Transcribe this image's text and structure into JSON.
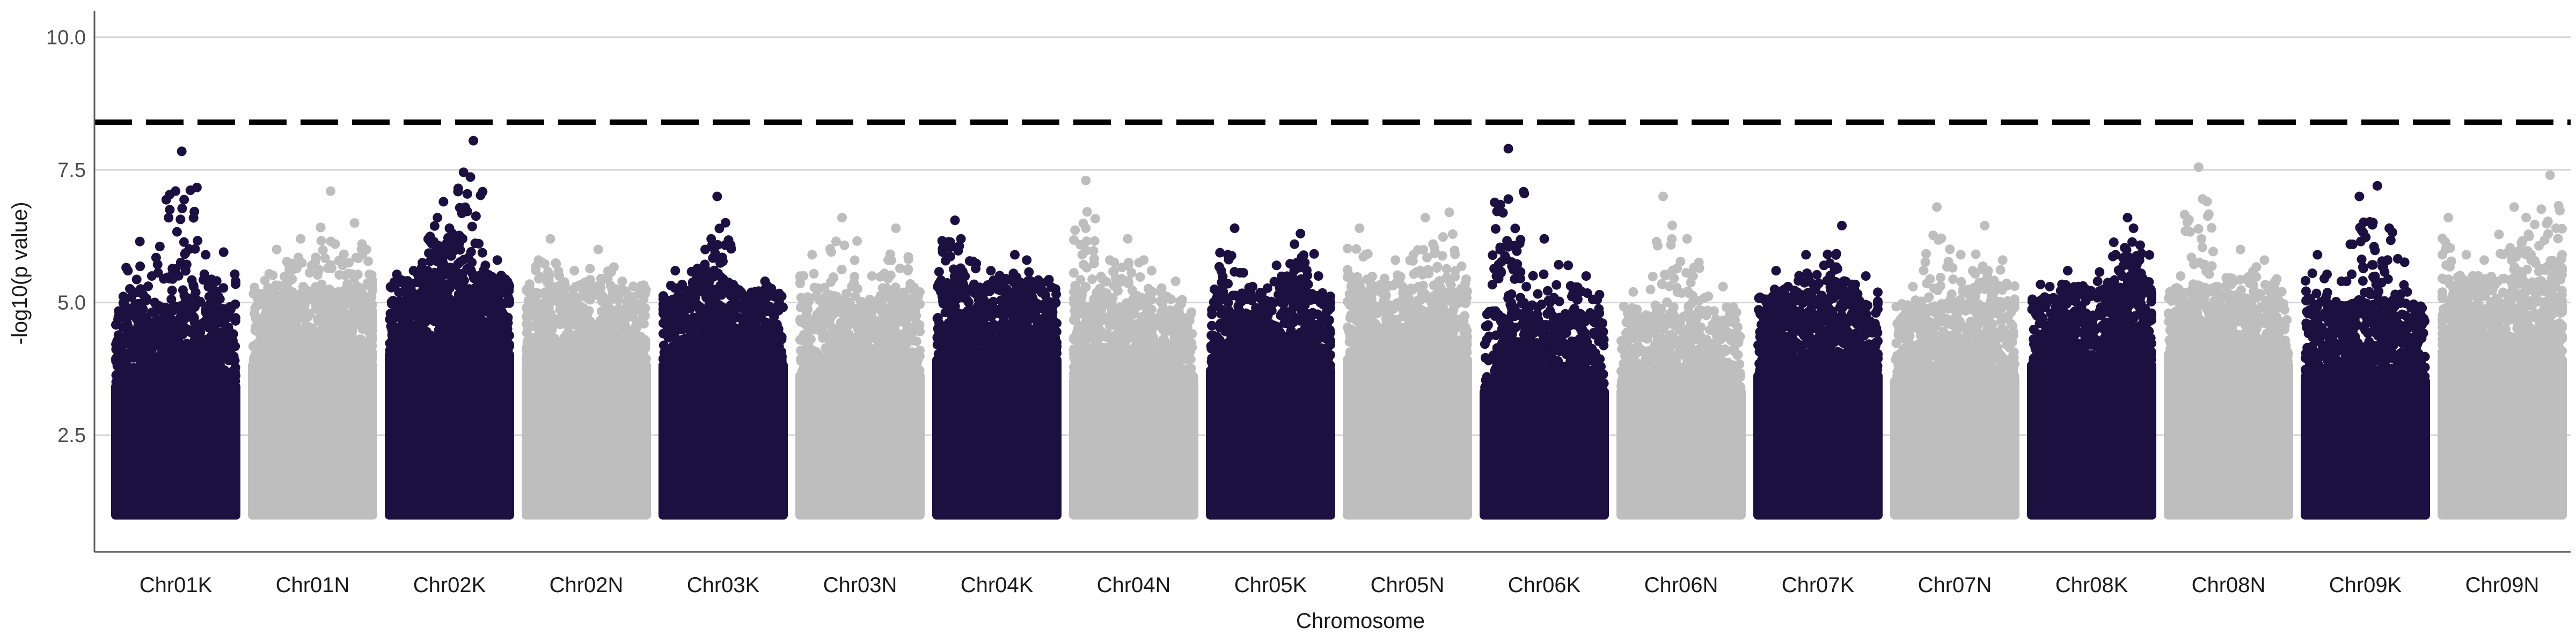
{
  "chart_data": {
    "type": "scatter",
    "title": "",
    "xlabel": "Chromosome",
    "ylabel": "-log10(p value)",
    "ylim": [
      0.3,
      10.5
    ],
    "yticks": [
      2.5,
      5.0,
      7.5,
      10.0
    ],
    "ytick_labels": [
      "2.5",
      "5.0",
      "7.5",
      "10.0"
    ],
    "grid": "horizontal major lines",
    "legend": "none",
    "threshold": {
      "y": 8.4,
      "style": "dashed",
      "color": "#000000"
    },
    "colors": {
      "odd_chromosome": "#1c1040",
      "even_chromosome": "#bebebe",
      "grid": "#d4d4d4",
      "axis": "#5a5a5a"
    },
    "categories": [
      "Chr01K",
      "Chr01N",
      "Chr02K",
      "Chr02N",
      "Chr03K",
      "Chr03N",
      "Chr04K",
      "Chr04N",
      "Chr05K",
      "Chr05N",
      "Chr06K",
      "Chr06N",
      "Chr07K",
      "Chr07N",
      "Chr08K",
      "Chr08N",
      "Chr09K",
      "Chr09N"
    ],
    "series": [
      {
        "color": "#1c1040",
        "base_top": 3.5,
        "peaks": [
          [
            0.2,
            6.15
          ],
          [
            0.55,
            7.85
          ],
          [
            0.45,
            6.75
          ],
          [
            0.75,
            5.9
          ],
          [
            0.1,
            5.6
          ],
          [
            0.9,
            5.95
          ],
          [
            0.3,
            5.5
          ],
          [
            0.65,
            5.3
          ]
        ]
      },
      {
        "color": "#bebebe",
        "base_top": 3.9,
        "peaks": [
          [
            0.2,
            6.0
          ],
          [
            0.4,
            6.2
          ],
          [
            0.65,
            7.1
          ],
          [
            0.85,
            6.5
          ],
          [
            0.95,
            6.0
          ],
          [
            0.55,
            5.6
          ],
          [
            0.75,
            5.7
          ]
        ]
      },
      {
        "color": "#1c1040",
        "base_top": 4.1,
        "peaks": [
          [
            0.7,
            8.05
          ],
          [
            0.45,
            6.9
          ],
          [
            0.4,
            6.6
          ],
          [
            0.5,
            6.4
          ],
          [
            0.6,
            6.2
          ],
          [
            0.35,
            5.8
          ],
          [
            0.9,
            5.8
          ],
          [
            0.2,
            5.6
          ],
          [
            0.8,
            5.7
          ]
        ]
      },
      {
        "color": "#bebebe",
        "base_top": 3.9,
        "peaks": [
          [
            0.2,
            6.2
          ],
          [
            0.6,
            6.0
          ],
          [
            0.4,
            5.6
          ],
          [
            0.8,
            5.4
          ],
          [
            0.1,
            5.8
          ]
        ]
      },
      {
        "color": "#1c1040",
        "base_top": 3.9,
        "peaks": [
          [
            0.45,
            7.0
          ],
          [
            0.4,
            6.2
          ],
          [
            0.35,
            6.0
          ],
          [
            0.1,
            5.6
          ],
          [
            0.85,
            5.4
          ],
          [
            0.65,
            5.2
          ]
        ]
      },
      {
        "color": "#bebebe",
        "base_top": 3.7,
        "peaks": [
          [
            0.35,
            6.6
          ],
          [
            0.8,
            6.4
          ],
          [
            0.1,
            5.9
          ],
          [
            0.6,
            5.5
          ],
          [
            0.9,
            5.6
          ]
        ]
      },
      {
        "color": "#1c1040",
        "base_top": 4.0,
        "peaks": [
          [
            0.15,
            6.55
          ],
          [
            0.65,
            5.9
          ],
          [
            0.75,
            5.8
          ],
          [
            0.2,
            6.2
          ],
          [
            0.45,
            5.6
          ],
          [
            0.9,
            5.2
          ]
        ]
      },
      {
        "color": "#bebebe",
        "base_top": 3.6,
        "peaks": [
          [
            0.1,
            7.3
          ],
          [
            0.1,
            6.4
          ],
          [
            0.45,
            6.2
          ],
          [
            0.3,
            5.8
          ],
          [
            0.65,
            5.6
          ],
          [
            0.85,
            5.4
          ]
        ]
      },
      {
        "color": "#1c1040",
        "base_top": 3.8,
        "peaks": [
          [
            0.2,
            6.4
          ],
          [
            0.75,
            6.3
          ],
          [
            0.7,
            6.1
          ],
          [
            0.55,
            5.7
          ],
          [
            0.35,
            5.3
          ],
          [
            0.9,
            5.5
          ]
        ]
      },
      {
        "color": "#bebebe",
        "base_top": 4.0,
        "peaks": [
          [
            0.1,
            6.4
          ],
          [
            0.65,
            6.6
          ],
          [
            0.85,
            6.7
          ],
          [
            0.4,
            5.8
          ],
          [
            0.55,
            5.9
          ],
          [
            0.9,
            5.6
          ]
        ]
      },
      {
        "color": "#1c1040",
        "base_top": 3.4,
        "peaks": [
          [
            0.2,
            7.9
          ],
          [
            0.2,
            6.95
          ],
          [
            0.5,
            6.2
          ],
          [
            0.7,
            5.7
          ],
          [
            0.85,
            5.5
          ],
          [
            0.35,
            5.3
          ]
        ]
      },
      {
        "color": "#bebebe",
        "base_top": 3.4,
        "peaks": [
          [
            0.35,
            7.0
          ],
          [
            0.55,
            6.2
          ],
          [
            0.6,
            5.5
          ],
          [
            0.1,
            5.2
          ],
          [
            0.85,
            5.3
          ]
        ]
      },
      {
        "color": "#1c1040",
        "base_top": 3.7,
        "peaks": [
          [
            0.7,
            6.45
          ],
          [
            0.4,
            5.9
          ],
          [
            0.15,
            5.6
          ],
          [
            0.55,
            5.7
          ],
          [
            0.9,
            5.5
          ],
          [
            0.25,
            5.3
          ]
        ]
      },
      {
        "color": "#bebebe",
        "base_top": 3.6,
        "peaks": [
          [
            0.35,
            6.8
          ],
          [
            0.75,
            6.45
          ],
          [
            0.55,
            5.9
          ],
          [
            0.15,
            5.3
          ],
          [
            0.9,
            5.8
          ]
        ]
      },
      {
        "color": "#1c1040",
        "base_top": 3.9,
        "peaks": [
          [
            0.8,
            6.6
          ],
          [
            0.85,
            6.4
          ],
          [
            0.7,
            5.9
          ],
          [
            0.9,
            5.8
          ],
          [
            0.3,
            5.6
          ],
          [
            0.15,
            5.3
          ],
          [
            0.55,
            5.4
          ]
        ]
      },
      {
        "color": "#bebebe",
        "base_top": 3.9,
        "peaks": [
          [
            0.25,
            7.55
          ],
          [
            0.6,
            6.0
          ],
          [
            0.8,
            5.8
          ],
          [
            0.1,
            5.5
          ],
          [
            0.4,
            5.3
          ]
        ]
      },
      {
        "color": "#1c1040",
        "base_top": 3.6,
        "peaks": [
          [
            0.6,
            7.2
          ],
          [
            0.45,
            7.0
          ],
          [
            0.7,
            6.4
          ],
          [
            0.1,
            5.9
          ],
          [
            0.3,
            5.4
          ],
          [
            0.85,
            5.2
          ]
        ]
      },
      {
        "color": "#bebebe",
        "base_top": 4.0,
        "peaks": [
          [
            0.9,
            7.4
          ],
          [
            0.6,
            6.8
          ],
          [
            0.7,
            6.6
          ],
          [
            0.05,
            6.6
          ],
          [
            0.95,
            6.4
          ],
          [
            0.35,
            5.8
          ],
          [
            0.2,
            5.9
          ]
        ]
      }
    ]
  }
}
